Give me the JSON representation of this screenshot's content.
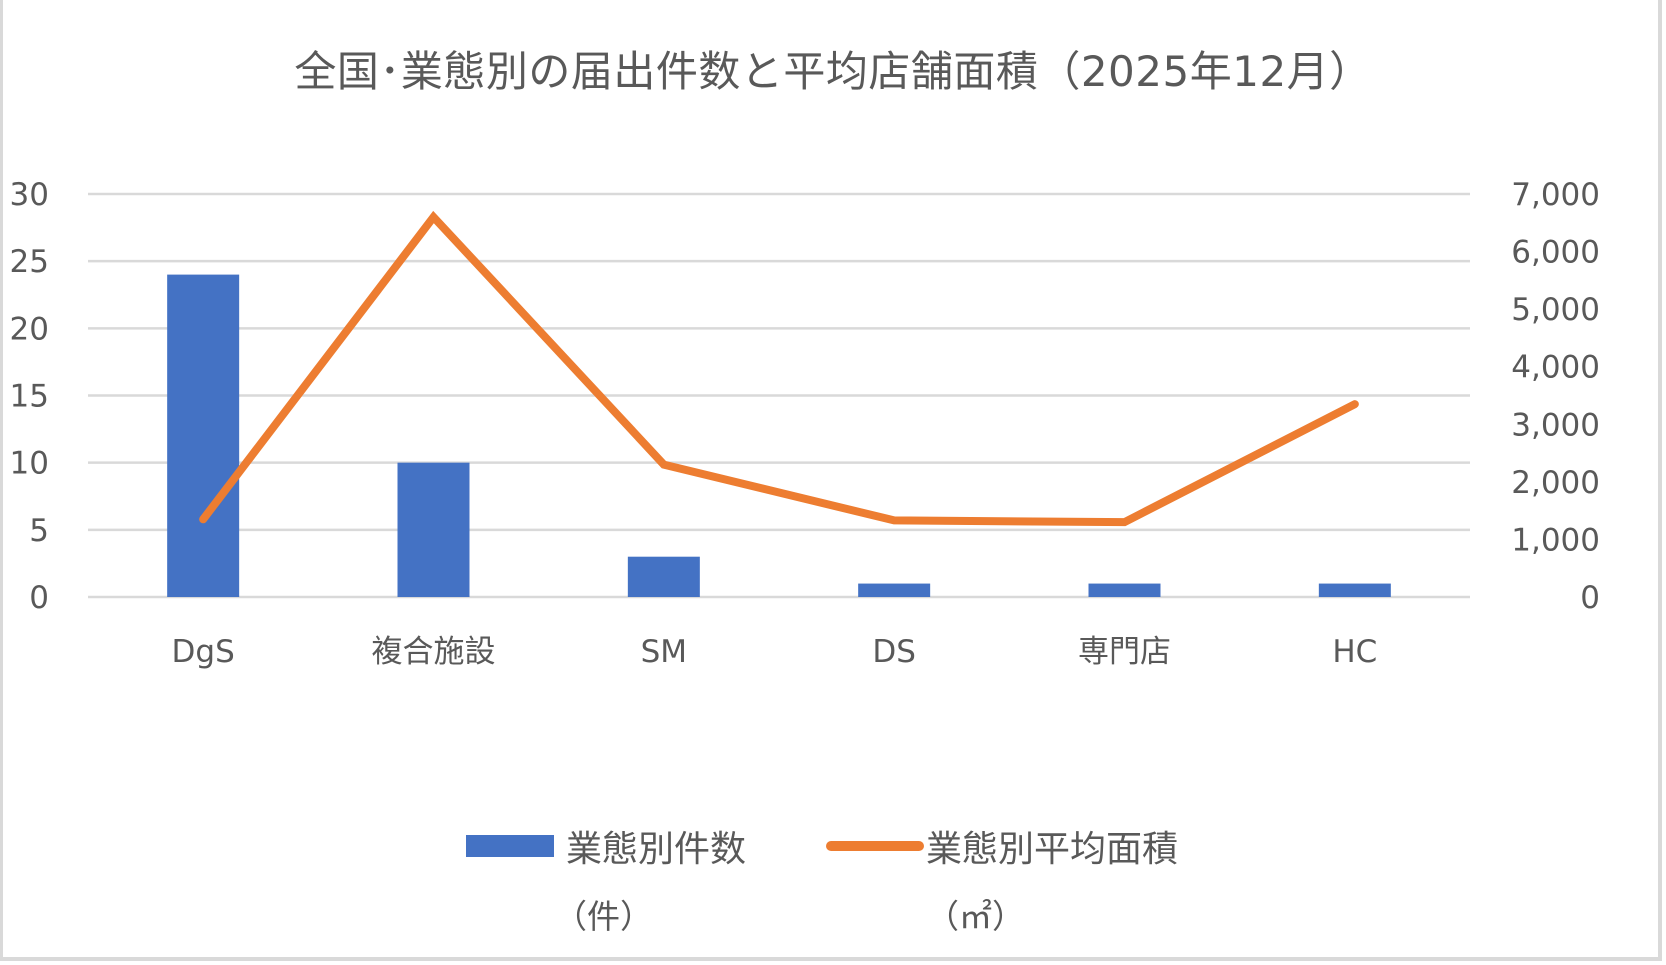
{
  "chart_data": {
    "type": "bar+line",
    "title": "全国･業態別の届出件数と平均店舗面積（2025年12月）",
    "categories": [
      "DgS",
      "複合施設",
      "SM",
      "DS",
      "専門店",
      "HC"
    ],
    "series": [
      {
        "name": "業態別件数（件）",
        "type": "bar",
        "axis": "left",
        "color": "#4472c4",
        "values": [
          24,
          10,
          3,
          1,
          1,
          1
        ]
      },
      {
        "name": "業態別平均面積（㎡）",
        "type": "line",
        "axis": "right",
        "color": "#ed7d31",
        "values": [
          1350,
          6600,
          2300,
          1330,
          1300,
          3350
        ]
      }
    ],
    "left_axis": {
      "label": "",
      "ylim": [
        0,
        30
      ],
      "ticks": [
        "0",
        "5",
        "10",
        "15",
        "20",
        "25",
        "30"
      ]
    },
    "right_axis": {
      "label": "",
      "ylim": [
        0,
        7000
      ],
      "ticks": [
        "0",
        "1,000",
        "2,000",
        "3,000",
        "4,000",
        "5,000",
        "6,000",
        "7,000"
      ]
    },
    "grid": true,
    "legend_position": "bottom"
  },
  "legend": {
    "bar_label": "業態別件数",
    "bar_unit": "（件）",
    "line_label": "業態別平均面積",
    "line_unit": "（㎡）"
  }
}
